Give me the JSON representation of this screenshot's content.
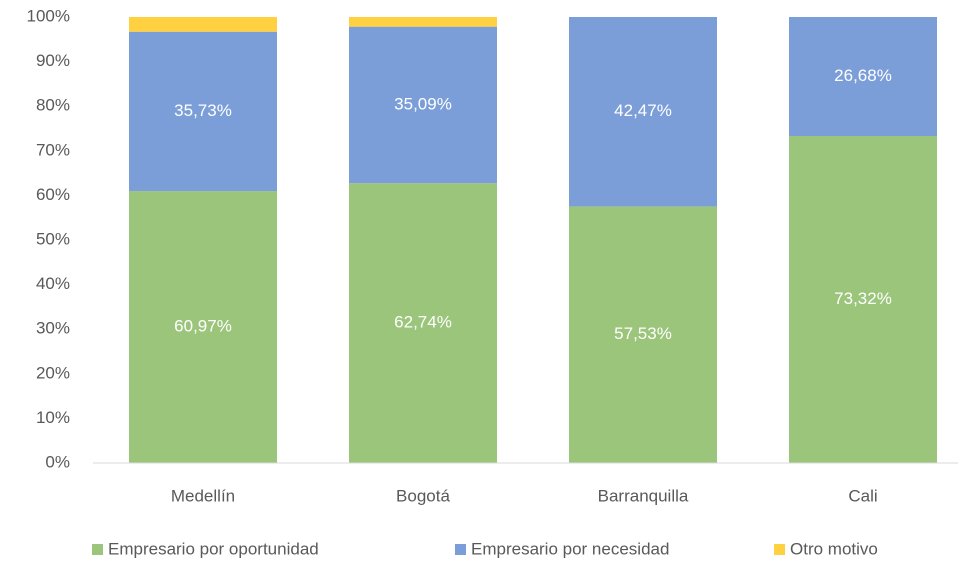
{
  "chart_data": {
    "type": "stacked_bar",
    "categories": [
      "Medellín",
      "Bogotá",
      "Barranquilla",
      "Cali"
    ],
    "series": [
      {
        "name": "Empresario por oportunidad",
        "color": "#9bc57b",
        "values": [
          60.97,
          62.74,
          57.53,
          73.32
        ],
        "value_labels": [
          "60,97%",
          "62,74%",
          "57,53%",
          "73,32%"
        ]
      },
      {
        "name": "Empresario por necesidad",
        "color": "#7b9ed8",
        "values": [
          35.73,
          35.09,
          42.47,
          26.68
        ],
        "value_labels": [
          "35,73%",
          "35,09%",
          "42,47%",
          "26,68%"
        ]
      },
      {
        "name": "Otro motivo",
        "color": "#ffd03f",
        "values": [
          3.3,
          2.17,
          0,
          0
        ]
      }
    ],
    "ylim": [
      0,
      100
    ],
    "yticks": [
      {
        "value": 0,
        "label": "0%"
      },
      {
        "value": 10,
        "label": "10%"
      },
      {
        "value": 20,
        "label": "20%"
      },
      {
        "value": 30,
        "label": "30%"
      },
      {
        "value": 40,
        "label": "40%"
      },
      {
        "value": 50,
        "label": "50%"
      },
      {
        "value": 60,
        "label": "60%"
      },
      {
        "value": 70,
        "label": "70%"
      },
      {
        "value": 80,
        "label": "80%"
      },
      {
        "value": 90,
        "label": "90%"
      },
      {
        "value": 100,
        "label": "100%"
      }
    ],
    "legend": "bottom"
  }
}
